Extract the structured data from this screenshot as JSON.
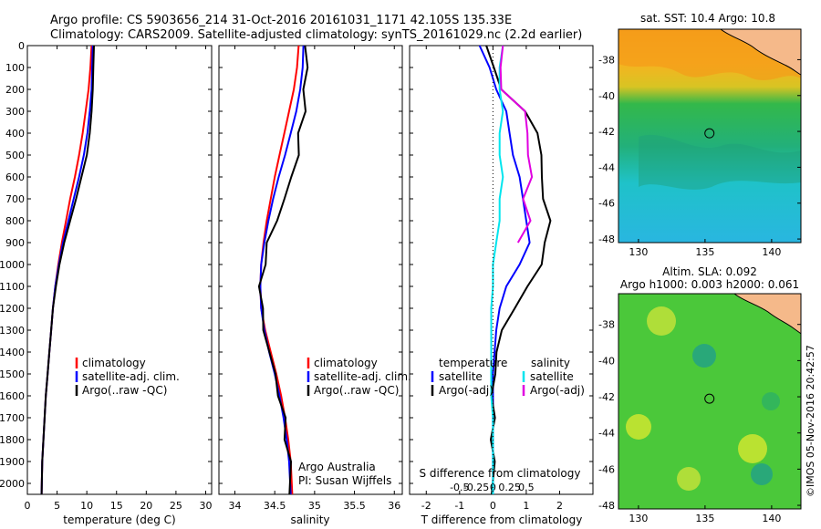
{
  "header": {
    "line1": "Argo profile: CS 5903656_214 31-Oct-2016 20161031_1171 42.105S 135.33E",
    "line2": "Climatology: CARS2009. Satellite-adjusted climatology: synTS_20161029.nc (2.2d earlier)"
  },
  "colors": {
    "climatology": "#ff0000",
    "satellite": "#0000ff",
    "argo": "#000000",
    "salinity_satellite": "#00e5ee",
    "salinity_argo": "#e000e0",
    "land": "#f5b98a"
  },
  "credits": {
    "vertical": "©IMOS 05-Nov-2016 20:42:57",
    "argo_aus": "Argo Australia",
    "pi": "PI: Susan Wijffels"
  },
  "chart_data": [
    {
      "type": "line",
      "id": "temperature",
      "xlabel": "temperature (deg C)",
      "xlim": [
        0,
        31
      ],
      "xticks": [
        "0",
        "5",
        "10",
        "15",
        "20",
        "25",
        "30"
      ],
      "ylim": [
        2050,
        0
      ],
      "yticks": [
        "0",
        "100",
        "200",
        "300",
        "400",
        "500",
        "600",
        "700",
        "800",
        "900",
        "1000",
        "1100",
        "1200",
        "1300",
        "1400",
        "1500",
        "1600",
        "1700",
        "1800",
        "1900",
        "2000"
      ],
      "legend": [
        "climatology",
        "satellite-adj. clim.",
        "Argo(..raw -QC)"
      ],
      "series": [
        {
          "name": "climatology",
          "color": "#ff0000",
          "x": [
            10.8,
            10.6,
            10.3,
            9.8,
            9.3,
            8.7,
            8.0,
            7.2,
            6.5,
            5.8,
            5.2,
            4.7,
            4.3,
            4.0,
            3.7,
            3.4,
            3.1,
            2.9,
            2.7,
            2.5,
            2.4
          ],
          "y": [
            0,
            100,
            200,
            300,
            400,
            500,
            600,
            700,
            800,
            900,
            1000,
            1100,
            1200,
            1300,
            1400,
            1500,
            1600,
            1700,
            1800,
            1900,
            2050
          ]
        },
        {
          "name": "satellite-adj. clim.",
          "color": "#0000ff",
          "x": [
            11.0,
            10.9,
            10.8,
            10.5,
            10.1,
            9.5,
            8.7,
            7.8,
            6.9,
            6.0,
            5.3,
            4.7,
            4.3,
            4.0,
            3.7,
            3.4,
            3.1,
            2.9,
            2.7,
            2.5,
            2.4
          ],
          "y": [
            0,
            100,
            200,
            300,
            400,
            500,
            600,
            700,
            800,
            900,
            1000,
            1100,
            1200,
            1300,
            1400,
            1500,
            1600,
            1700,
            1800,
            1900,
            2050
          ]
        },
        {
          "name": "Argo(..raw -QC)",
          "color": "#000000",
          "x": [
            11.2,
            11.1,
            11.0,
            10.8,
            10.5,
            10.0,
            9.1,
            8.2,
            7.2,
            6.2,
            5.4,
            4.8,
            4.3,
            4.0,
            3.7,
            3.4,
            3.1,
            2.9,
            2.7,
            2.5,
            2.4
          ],
          "y": [
            0,
            100,
            200,
            300,
            400,
            500,
            600,
            700,
            800,
            900,
            1000,
            1100,
            1200,
            1300,
            1400,
            1500,
            1600,
            1700,
            1800,
            1900,
            2050
          ]
        }
      ]
    },
    {
      "type": "line",
      "id": "salinity",
      "xlabel": "salinity",
      "xlim": [
        33.8,
        36.1
      ],
      "xticks": [
        "34",
        "34.5",
        "35",
        "35.5",
        "36"
      ],
      "ylim": [
        2050,
        0
      ],
      "legend": [
        "climatology",
        "satellite-adj. clim.",
        "Argo(..raw -QC)"
      ],
      "series": [
        {
          "name": "climatology",
          "color": "#ff0000",
          "x": [
            34.8,
            34.78,
            34.74,
            34.68,
            34.62,
            34.56,
            34.5,
            34.45,
            34.4,
            34.36,
            34.33,
            34.32,
            34.33,
            34.38,
            34.45,
            34.52,
            34.58,
            34.63,
            34.67,
            34.7,
            34.72
          ],
          "y": [
            0,
            100,
            200,
            300,
            400,
            500,
            600,
            700,
            800,
            900,
            1000,
            1100,
            1200,
            1300,
            1400,
            1500,
            1600,
            1700,
            1800,
            1900,
            2050
          ]
        },
        {
          "name": "satellite-adj. clim.",
          "color": "#0000ff",
          "x": [
            34.86,
            34.85,
            34.82,
            34.77,
            34.7,
            34.63,
            34.55,
            34.48,
            34.42,
            34.37,
            34.33,
            34.32,
            34.33,
            34.37,
            34.43,
            34.5,
            34.56,
            34.61,
            34.65,
            34.68,
            34.7
          ],
          "y": [
            0,
            100,
            200,
            300,
            400,
            500,
            600,
            700,
            800,
            900,
            1000,
            1100,
            1200,
            1300,
            1400,
            1500,
            1600,
            1700,
            1800,
            1900,
            2050
          ]
        },
        {
          "name": "Argo(..raw -QC)",
          "color": "#000000",
          "x": [
            34.88,
            34.9,
            34.88,
            34.86,
            34.82,
            34.78,
            34.72,
            34.62,
            34.52,
            34.42,
            34.36,
            34.33,
            34.33,
            34.37,
            34.43,
            34.5,
            34.56,
            34.61,
            34.65,
            34.68,
            34.7
          ],
          "y": [
            0,
            100,
            200,
            300,
            400,
            500,
            600,
            700,
            800,
            900,
            1000,
            1100,
            1200,
            1300,
            1400,
            1500,
            1600,
            1700,
            1800,
            1900,
            2050
          ]
        }
      ]
    },
    {
      "type": "line",
      "id": "difference",
      "xlabel": "T difference from climatology",
      "xlabel_top": "S difference from climatology",
      "xlim": [
        -2.5,
        3.0
      ],
      "xticks": [
        "-2",
        "-1",
        "0",
        "1",
        "2"
      ],
      "xticks_top": [
        "-0.5",
        "-0.25",
        "0",
        "0.25",
        "0.5"
      ],
      "ylim": [
        2050,
        0
      ],
      "legend_groups": [
        "temperature",
        "salinity"
      ],
      "legend": [
        "satellite",
        "Argo(-adj)",
        "satellite",
        "Argo(-adj)"
      ],
      "series": [
        {
          "name": "satellite",
          "group": "temperature",
          "color": "#0000ff",
          "x": [
            -0.4,
            -0.1,
            0.1,
            0.4,
            0.5,
            0.6,
            0.8,
            0.9,
            1.0,
            1.1,
            0.8,
            0.4,
            0.2,
            0.1,
            0.05,
            0.0,
            0.0,
            0.0,
            0.0,
            0.0,
            0.0
          ],
          "y": [
            0,
            100,
            200,
            300,
            400,
            500,
            600,
            700,
            800,
            900,
            1000,
            1100,
            1200,
            1300,
            1400,
            1500,
            1600,
            1700,
            1800,
            1900,
            2050
          ]
        },
        {
          "name": "Argo(-adj)",
          "group": "temperature",
          "color": "#000000",
          "x": [
            -0.2,
            0.0,
            0.3,
            0.9,
            1.4,
            1.4,
            1.5,
            1.5,
            1.7,
            1.6,
            1.4,
            1.1,
            0.6,
            0.3,
            0.1,
            0.05,
            0.0,
            0.0,
            0.0,
            0.0,
            0.0
          ],
          "y": [
            0,
            100,
            200,
            300,
            400,
            500,
            600,
            700,
            800,
            900,
            1000,
            1100,
            1200,
            1300,
            1400,
            1500,
            1600,
            1700,
            1800,
            1900,
            2050
          ]
        },
        {
          "name": "satellite",
          "group": "salinity",
          "color": "#00e5ee",
          "x": [
            0.3,
            0.2,
            0.2,
            0.3,
            0.2,
            0.2,
            0.3,
            0.2,
            0.2,
            0.1,
            0.0,
            0.0,
            -0.05,
            -0.05,
            -0.05,
            -0.05,
            -0.05,
            0.0,
            0.0,
            0.0,
            0.0
          ],
          "y": [
            0,
            100,
            200,
            300,
            400,
            500,
            600,
            700,
            800,
            900,
            1000,
            1100,
            1200,
            1300,
            1400,
            1500,
            1600,
            1700,
            1800,
            1900,
            2050
          ]
        },
        {
          "name": "Argo(-adj)",
          "group": "salinity",
          "color": "#e000e0",
          "x": [
            0.3,
            0.2,
            0.3,
            0.9,
            1.1,
            1.0,
            1.2,
            0.9,
            1.1,
            0.8,
            null,
            null,
            null,
            null,
            null,
            null,
            null,
            null,
            null,
            null,
            null
          ],
          "y": [
            0,
            100,
            200,
            300,
            400,
            500,
            600,
            700,
            800,
            900,
            1000,
            1100,
            1200,
            1300,
            1400,
            1500,
            1600,
            1700,
            1800,
            1900,
            2050
          ]
        }
      ]
    },
    {
      "type": "heatmap",
      "id": "sst_map",
      "title": "sat. SST: 10.4  Argo: 10.8",
      "xticks": [
        "130",
        "135",
        "140"
      ],
      "yticks": [
        "-38",
        "-40",
        "-42",
        "-44",
        "-46",
        "-48"
      ],
      "xlim": [
        128.5,
        142.2
      ],
      "ylim": [
        -48.2,
        -36.3
      ],
      "argo_point": {
        "lon": 135.33,
        "lat": -42.105
      }
    },
    {
      "type": "heatmap",
      "id": "sla_map",
      "title_line1": "Altim. SLA: 0.092",
      "title_line2": "Argo h1000: 0.003 h2000: 0.061",
      "xticks": [
        "130",
        "135",
        "140"
      ],
      "yticks": [
        "-38",
        "-40",
        "-42",
        "-44",
        "-46",
        "-48"
      ],
      "xlim": [
        128.5,
        142.2
      ],
      "ylim": [
        -48.2,
        -36.3
      ],
      "argo_point": {
        "lon": 135.33,
        "lat": -42.105
      }
    }
  ]
}
